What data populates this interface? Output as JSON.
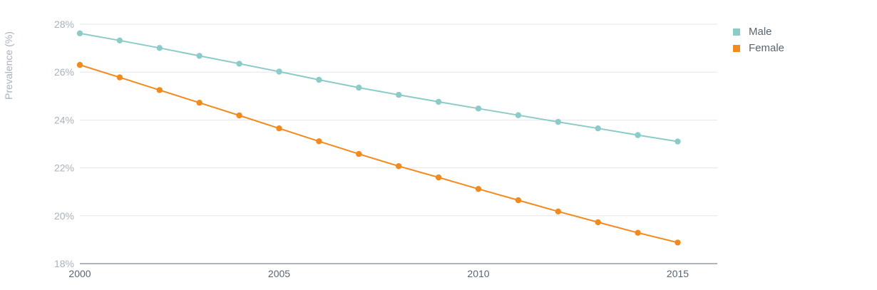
{
  "chart_data": {
    "type": "line",
    "ylabel": "Prevalence (%)",
    "xlabel": "",
    "x": [
      2000,
      2001,
      2002,
      2003,
      2004,
      2005,
      2006,
      2007,
      2008,
      2009,
      2010,
      2011,
      2012,
      2013,
      2014,
      2015
    ],
    "xlim": [
      2000,
      2016
    ],
    "x_ticks": [
      "2000",
      "2005",
      "2010",
      "2015"
    ],
    "ylim": [
      18,
      28
    ],
    "y_ticks": [
      "18%",
      "20%",
      "22%",
      "24%",
      "26%",
      "28%"
    ],
    "grid": true,
    "legend_position": "top-right",
    "series": [
      {
        "name": "Male",
        "color": "#8ccbc8",
        "values": [
          27.62,
          27.32,
          27.01,
          26.68,
          26.35,
          26.02,
          25.68,
          25.35,
          25.05,
          24.76,
          24.48,
          24.2,
          23.92,
          23.65,
          23.37,
          23.1
        ]
      },
      {
        "name": "Female",
        "color": "#f28a1e",
        "values": [
          26.3,
          25.78,
          25.25,
          24.72,
          24.19,
          23.65,
          23.11,
          22.58,
          22.07,
          21.6,
          21.12,
          20.65,
          20.18,
          19.73,
          19.29,
          18.88
        ]
      }
    ]
  }
}
